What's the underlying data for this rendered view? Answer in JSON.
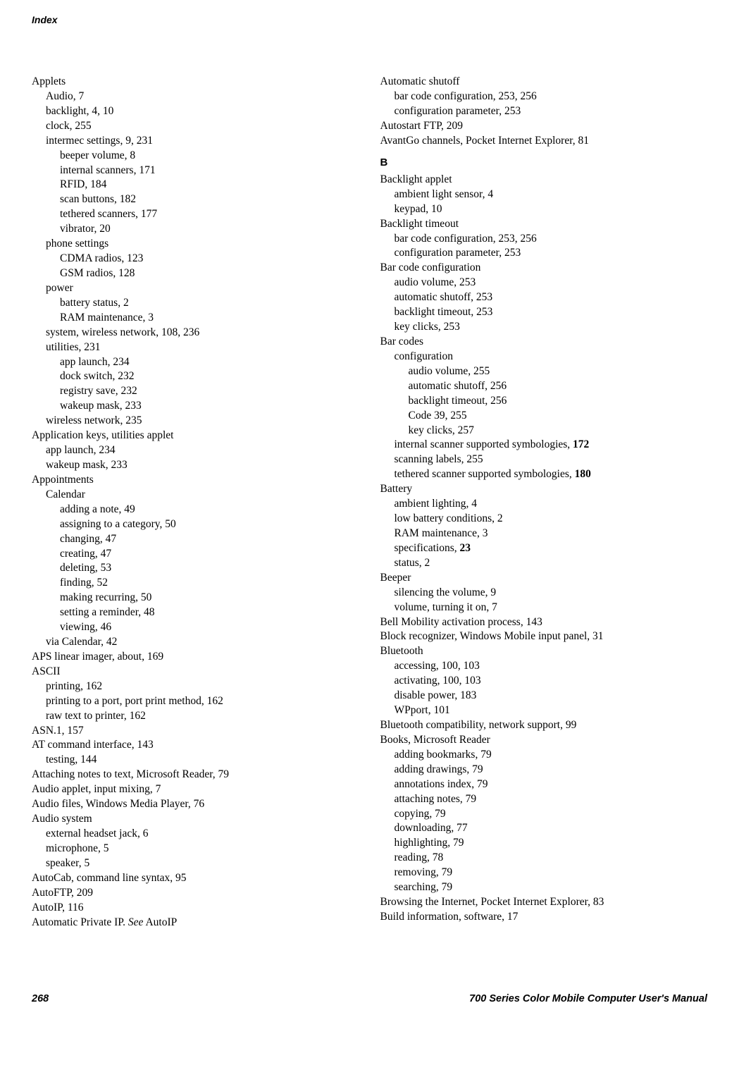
{
  "header": "Index",
  "footer": {
    "page_number": "268",
    "manual_title": "700 Series Color Mobile Computer User's Manual"
  },
  "section_b": "B",
  "left_column": [
    {
      "text": "Applets",
      "level": 0
    },
    {
      "text": "Audio, 7",
      "level": 1
    },
    {
      "text": "backlight, 4, 10",
      "level": 1
    },
    {
      "text": "clock, 255",
      "level": 1
    },
    {
      "text": "intermec settings, 9, 231",
      "level": 1
    },
    {
      "text": "beeper volume, 8",
      "level": 2
    },
    {
      "text": "internal scanners, 171",
      "level": 2
    },
    {
      "text": "RFID, 184",
      "level": 2
    },
    {
      "text": "scan buttons, 182",
      "level": 2
    },
    {
      "text": "tethered scanners, 177",
      "level": 2
    },
    {
      "text": "vibrator, 20",
      "level": 2
    },
    {
      "text": "phone settings",
      "level": 1
    },
    {
      "text": "CDMA radios, 123",
      "level": 2
    },
    {
      "text": "GSM radios, 128",
      "level": 2
    },
    {
      "text": "power",
      "level": 1
    },
    {
      "text": "battery status, 2",
      "level": 2
    },
    {
      "text": "RAM maintenance, 3",
      "level": 2
    },
    {
      "text": "system, wireless network, 108, 236",
      "level": 1
    },
    {
      "text": "utilities, 231",
      "level": 1
    },
    {
      "text": "app launch, 234",
      "level": 2
    },
    {
      "text": "dock switch, 232",
      "level": 2
    },
    {
      "text": "registry save, 232",
      "level": 2
    },
    {
      "text": "wakeup mask, 233",
      "level": 2
    },
    {
      "text": "wireless network, 235",
      "level": 1
    },
    {
      "text": "Application keys, utilities applet",
      "level": 0
    },
    {
      "text": "app launch, 234",
      "level": 1
    },
    {
      "text": "wakeup mask, 233",
      "level": 1
    },
    {
      "text": "Appointments",
      "level": 0
    },
    {
      "text": "Calendar",
      "level": 1
    },
    {
      "text": "adding a note, 49",
      "level": 2
    },
    {
      "text": "assigning to a category, 50",
      "level": 2
    },
    {
      "text": "changing, 47",
      "level": 2
    },
    {
      "text": "creating, 47",
      "level": 2
    },
    {
      "text": "deleting, 53",
      "level": 2
    },
    {
      "text": "finding, 52",
      "level": 2
    },
    {
      "text": "making recurring, 50",
      "level": 2
    },
    {
      "text": "setting a reminder, 48",
      "level": 2
    },
    {
      "text": "viewing, 46",
      "level": 2
    },
    {
      "text": "via Calendar, 42",
      "level": 1
    },
    {
      "text": "APS linear imager, about, 169",
      "level": 0
    },
    {
      "text": "ASCII",
      "level": 0
    },
    {
      "text": "printing, 162",
      "level": 1
    },
    {
      "text": "printing to a port, port print method, 162",
      "level": 1
    },
    {
      "text": "raw text to printer, 162",
      "level": 1
    },
    {
      "text": "ASN.1, 157",
      "level": 0
    },
    {
      "text": "AT command interface, 143",
      "level": 0
    },
    {
      "text": "testing, 144",
      "level": 1
    },
    {
      "text": "Attaching notes to text, Microsoft Reader, 79",
      "level": 0
    },
    {
      "text": "Audio applet, input mixing, 7",
      "level": 0
    },
    {
      "text": "Audio files, Windows Media Player, 76",
      "level": 0
    },
    {
      "text": "Audio system",
      "level": 0
    },
    {
      "text": "external headset jack, 6",
      "level": 1
    },
    {
      "text": "microphone, 5",
      "level": 1
    },
    {
      "text": "speaker, 5",
      "level": 1
    },
    {
      "text": "AutoCab, command line syntax, 95",
      "level": 0
    },
    {
      "text": "AutoFTP, 209",
      "level": 0
    },
    {
      "text": "AutoIP, 116",
      "level": 0
    },
    {
      "text": "Automatic Private IP. <i>See</i> AutoIP",
      "level": 0,
      "html": true
    }
  ],
  "right_column_top": [
    {
      "text": "Automatic shutoff",
      "level": 0
    },
    {
      "text": "bar code configuration, 253, 256",
      "level": 1
    },
    {
      "text": "configuration parameter, 253",
      "level": 1
    },
    {
      "text": "Autostart FTP, 209",
      "level": 0
    },
    {
      "text": "AvantGo channels, Pocket Internet Explorer, 81",
      "level": 0
    }
  ],
  "right_column_b": [
    {
      "text": "Backlight applet",
      "level": 0
    },
    {
      "text": "ambient light sensor, 4",
      "level": 1
    },
    {
      "text": "keypad, 10",
      "level": 1
    },
    {
      "text": "Backlight timeout",
      "level": 0
    },
    {
      "text": "bar code configuration, 253, 256",
      "level": 1
    },
    {
      "text": "configuration parameter, 253",
      "level": 1
    },
    {
      "text": "Bar code configuration",
      "level": 0
    },
    {
      "text": "audio volume, 253",
      "level": 1
    },
    {
      "text": "automatic shutoff, 253",
      "level": 1
    },
    {
      "text": "backlight timeout, 253",
      "level": 1
    },
    {
      "text": "key clicks, 253",
      "level": 1
    },
    {
      "text": "Bar codes",
      "level": 0
    },
    {
      "text": "configuration",
      "level": 1
    },
    {
      "text": "audio volume, 255",
      "level": 2
    },
    {
      "text": "automatic shutoff, 256",
      "level": 2
    },
    {
      "text": "backlight timeout, 256",
      "level": 2
    },
    {
      "text": "Code 39, 255",
      "level": 2
    },
    {
      "text": "key clicks, 257",
      "level": 2
    },
    {
      "text": "internal scanner supported symbologies, <b>172</b>",
      "level": 1,
      "html": true
    },
    {
      "text": "scanning labels, 255",
      "level": 1
    },
    {
      "text": "tethered scanner supported symbologies, <b>180</b>",
      "level": 1,
      "html": true
    },
    {
      "text": "Battery",
      "level": 0
    },
    {
      "text": "ambient lighting, 4",
      "level": 1
    },
    {
      "text": "low battery conditions, 2",
      "level": 1
    },
    {
      "text": "RAM maintenance, 3",
      "level": 1
    },
    {
      "text": "specifications, <b>23</b>",
      "level": 1,
      "html": true
    },
    {
      "text": "status, 2",
      "level": 1
    },
    {
      "text": "Beeper",
      "level": 0
    },
    {
      "text": "silencing the volume, 9",
      "level": 1
    },
    {
      "text": "volume, turning it on, 7",
      "level": 1
    },
    {
      "text": "Bell Mobility activation process, 143",
      "level": 0
    },
    {
      "text": "Block recognizer, Windows Mobile input panel, 31",
      "level": 0
    },
    {
      "text": "Bluetooth",
      "level": 0
    },
    {
      "text": "accessing, 100, 103",
      "level": 1
    },
    {
      "text": "activating, 100, 103",
      "level": 1
    },
    {
      "text": "disable power, 183",
      "level": 1
    },
    {
      "text": "WPport, 101",
      "level": 1
    },
    {
      "text": "Bluetooth compatibility, network support, 99",
      "level": 0
    },
    {
      "text": "Books, Microsoft Reader",
      "level": 0
    },
    {
      "text": "adding bookmarks, 79",
      "level": 1
    },
    {
      "text": "adding drawings, 79",
      "level": 1
    },
    {
      "text": "annotations index, 79",
      "level": 1
    },
    {
      "text": "attaching notes, 79",
      "level": 1
    },
    {
      "text": "copying, 79",
      "level": 1
    },
    {
      "text": "downloading, 77",
      "level": 1
    },
    {
      "text": "highlighting, 79",
      "level": 1
    },
    {
      "text": "reading, 78",
      "level": 1
    },
    {
      "text": "removing, 79",
      "level": 1
    },
    {
      "text": "searching, 79",
      "level": 1
    },
    {
      "text": "Browsing the Internet, Pocket Internet Explorer, 83",
      "level": 0
    },
    {
      "text": "Build information, software, 17",
      "level": 0
    }
  ]
}
